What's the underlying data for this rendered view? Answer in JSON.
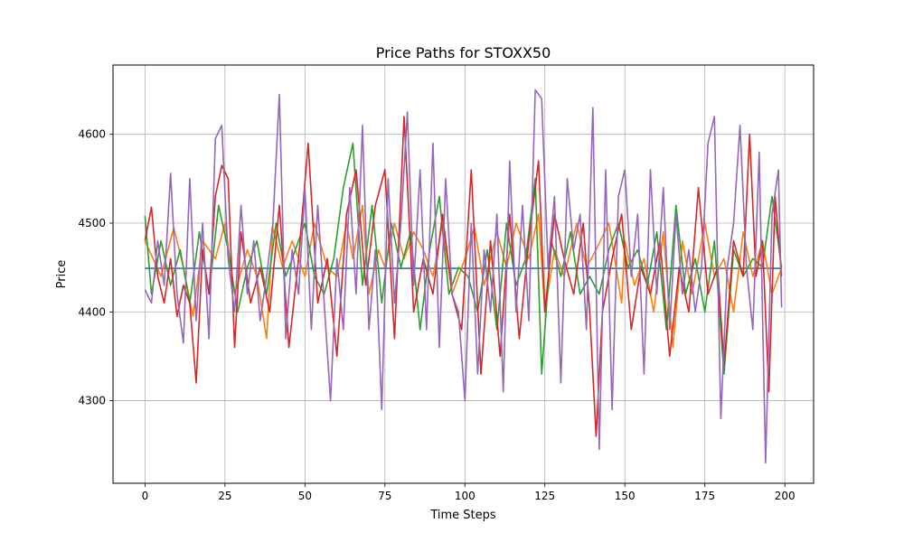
{
  "chart_data": {
    "type": "line",
    "title": "Price Paths for STOXX50",
    "xlabel": "Time Steps",
    "ylabel": "Price",
    "xlim": [
      -10,
      209
    ],
    "ylim": [
      4207,
      4678
    ],
    "xticks": [
      0,
      25,
      50,
      75,
      100,
      125,
      150,
      175,
      200
    ],
    "yticks": [
      4300,
      4400,
      4500,
      4600
    ],
    "grid": true,
    "series": [
      {
        "color": "#1f77b4",
        "x": [
          0,
          199
        ],
        "y": [
          4449,
          4449
        ]
      },
      {
        "color": "#ff7f0e",
        "x": [
          0,
          5,
          9,
          12,
          15,
          18,
          22,
          25,
          28,
          32,
          35,
          38,
          40,
          43,
          46,
          50,
          53,
          57,
          60,
          63,
          65,
          68,
          70,
          73,
          75,
          78,
          81,
          84,
          87,
          90,
          93,
          96,
          100,
          103,
          106,
          110,
          113,
          116,
          120,
          123,
          125,
          128,
          131,
          135,
          138,
          141,
          145,
          149,
          150,
          153,
          156,
          159,
          162,
          165,
          168,
          171,
          175,
          178,
          181,
          184,
          187,
          190,
          193,
          196,
          199
        ],
        "y": [
          4480,
          4440,
          4495,
          4450,
          4395,
          4480,
          4460,
          4500,
          4420,
          4470,
          4440,
          4370,
          4495,
          4450,
          4480,
          4440,
          4500,
          4450,
          4440,
          4500,
          4460,
          4520,
          4420,
          4470,
          4450,
          4500,
          4460,
          4490,
          4470,
          4440,
          4500,
          4420,
          4460,
          4495,
          4430,
          4490,
          4450,
          4500,
          4460,
          4510,
          4400,
          4470,
          4440,
          4500,
          4450,
          4470,
          4500,
          4410,
          4480,
          4430,
          4460,
          4400,
          4490,
          4360,
          4480,
          4420,
          4500,
          4440,
          4460,
          4400,
          4490,
          4440,
          4480,
          4420,
          4450
        ]
      },
      {
        "color": "#2ca02c",
        "x": [
          0,
          2,
          5,
          8,
          11,
          14,
          17,
          20,
          23,
          26,
          29,
          32,
          35,
          38,
          41,
          44,
          47,
          50,
          53,
          56,
          59,
          62,
          65,
          68,
          71,
          74,
          77,
          80,
          83,
          86,
          89,
          92,
          95,
          98,
          101,
          104,
          107,
          110,
          113,
          116,
          119,
          122,
          124,
          127,
          130,
          133,
          136,
          139,
          142,
          145,
          148,
          151,
          154,
          157,
          160,
          163,
          166,
          169,
          172,
          175,
          178,
          181,
          184,
          187,
          190,
          193,
          196,
          199
        ],
        "y": [
          4508,
          4420,
          4480,
          4430,
          4470,
          4410,
          4490,
          4420,
          4520,
          4470,
          4400,
          4450,
          4480,
          4420,
          4500,
          4440,
          4470,
          4500,
          4440,
          4420,
          4460,
          4540,
          4590,
          4430,
          4520,
          4410,
          4500,
          4450,
          4490,
          4380,
          4470,
          4530,
          4420,
          4450,
          4440,
          4400,
          4470,
          4380,
          4500,
          4430,
          4460,
          4550,
          4330,
          4480,
          4440,
          4490,
          4420,
          4440,
          4420,
          4470,
          4500,
          4450,
          4470,
          4430,
          4490,
          4380,
          4520,
          4420,
          4460,
          4400,
          4480,
          4330,
          4470,
          4440,
          4460,
          4450,
          4530,
          4450
        ]
      },
      {
        "color": "#d62728",
        "x": [
          0,
          2,
          4,
          6,
          8,
          10,
          12,
          14,
          16,
          18,
          20,
          22,
          24,
          26,
          28,
          30,
          33,
          36,
          39,
          42,
          45,
          48,
          51,
          54,
          57,
          60,
          63,
          66,
          69,
          72,
          75,
          78,
          81,
          84,
          87,
          90,
          93,
          96,
          99,
          102,
          105,
          108,
          111,
          114,
          117,
          120,
          123,
          125,
          128,
          131,
          134,
          137,
          139,
          141,
          143,
          146,
          149,
          152,
          155,
          158,
          161,
          164,
          167,
          170,
          173,
          176,
          179,
          181,
          184,
          187,
          189,
          191,
          193,
          195,
          197,
          199
        ],
        "y": [
          4480,
          4518,
          4440,
          4410,
          4460,
          4395,
          4430,
          4410,
          4320,
          4470,
          4420,
          4530,
          4565,
          4550,
          4360,
          4490,
          4410,
          4450,
          4400,
          4520,
          4360,
          4460,
          4590,
          4410,
          4460,
          4350,
          4510,
          4560,
          4430,
          4520,
          4560,
          4370,
          4620,
          4400,
          4460,
          4420,
          4510,
          4420,
          4380,
          4560,
          4330,
          4480,
          4350,
          4510,
          4370,
          4480,
          4570,
          4400,
          4510,
          4460,
          4420,
          4500,
          4400,
          4260,
          4400,
          4460,
          4510,
          4380,
          4450,
          4420,
          4480,
          4350,
          4450,
          4400,
          4540,
          4420,
          4450,
          4340,
          4480,
          4440,
          4600,
          4440,
          4480,
          4310,
          4530,
          4440
        ]
      },
      {
        "color": "#9467bd",
        "x": [
          0,
          2,
          4,
          6,
          8,
          10,
          12,
          14,
          16,
          18,
          20,
          22,
          24,
          26,
          28,
          30,
          32,
          34,
          36,
          38,
          40,
          42,
          44,
          46,
          48,
          50,
          52,
          54,
          56,
          58,
          60,
          62,
          64,
          66,
          68,
          70,
          72,
          74,
          76,
          78,
          80,
          82,
          84,
          86,
          88,
          90,
          92,
          94,
          96,
          98,
          100,
          102,
          104,
          106,
          108,
          110,
          112,
          114,
          116,
          118,
          120,
          122,
          124,
          126,
          128,
          130,
          132,
          134,
          136,
          138,
          140,
          142,
          144,
          146,
          148,
          150,
          152,
          154,
          156,
          158,
          160,
          162,
          164,
          166,
          168,
          170,
          172,
          174,
          176,
          178,
          180,
          182,
          184,
          186,
          188,
          190,
          192,
          194,
          196,
          198,
          199
        ],
        "y": [
          4425,
          4410,
          4480,
          4430,
          4556,
          4420,
          4365,
          4550,
          4390,
          4500,
          4370,
          4595,
          4610,
          4460,
          4400,
          4520,
          4420,
          4480,
          4390,
          4440,
          4500,
          4645,
          4370,
          4470,
          4420,
          4540,
          4380,
          4520,
          4410,
          4300,
          4460,
          4380,
          4540,
          4420,
          4610,
          4380,
          4470,
          4290,
          4550,
          4410,
          4500,
          4625,
          4430,
          4560,
          4380,
          4590,
          4360,
          4550,
          4420,
          4400,
          4300,
          4500,
          4330,
          4470,
          4400,
          4510,
          4310,
          4570,
          4400,
          4520,
          4390,
          4650,
          4640,
          4450,
          4530,
          4320,
          4550,
          4470,
          4510,
          4380,
          4630,
          4245,
          4560,
          4290,
          4530,
          4560,
          4440,
          4510,
          4330,
          4560,
          4420,
          4540,
          4380,
          4510,
          4420,
          4470,
          4400,
          4450,
          4590,
          4620,
          4280,
          4450,
          4500,
          4610,
          4450,
          4380,
          4580,
          4230,
          4510,
          4560,
          4405
        ]
      }
    ]
  }
}
